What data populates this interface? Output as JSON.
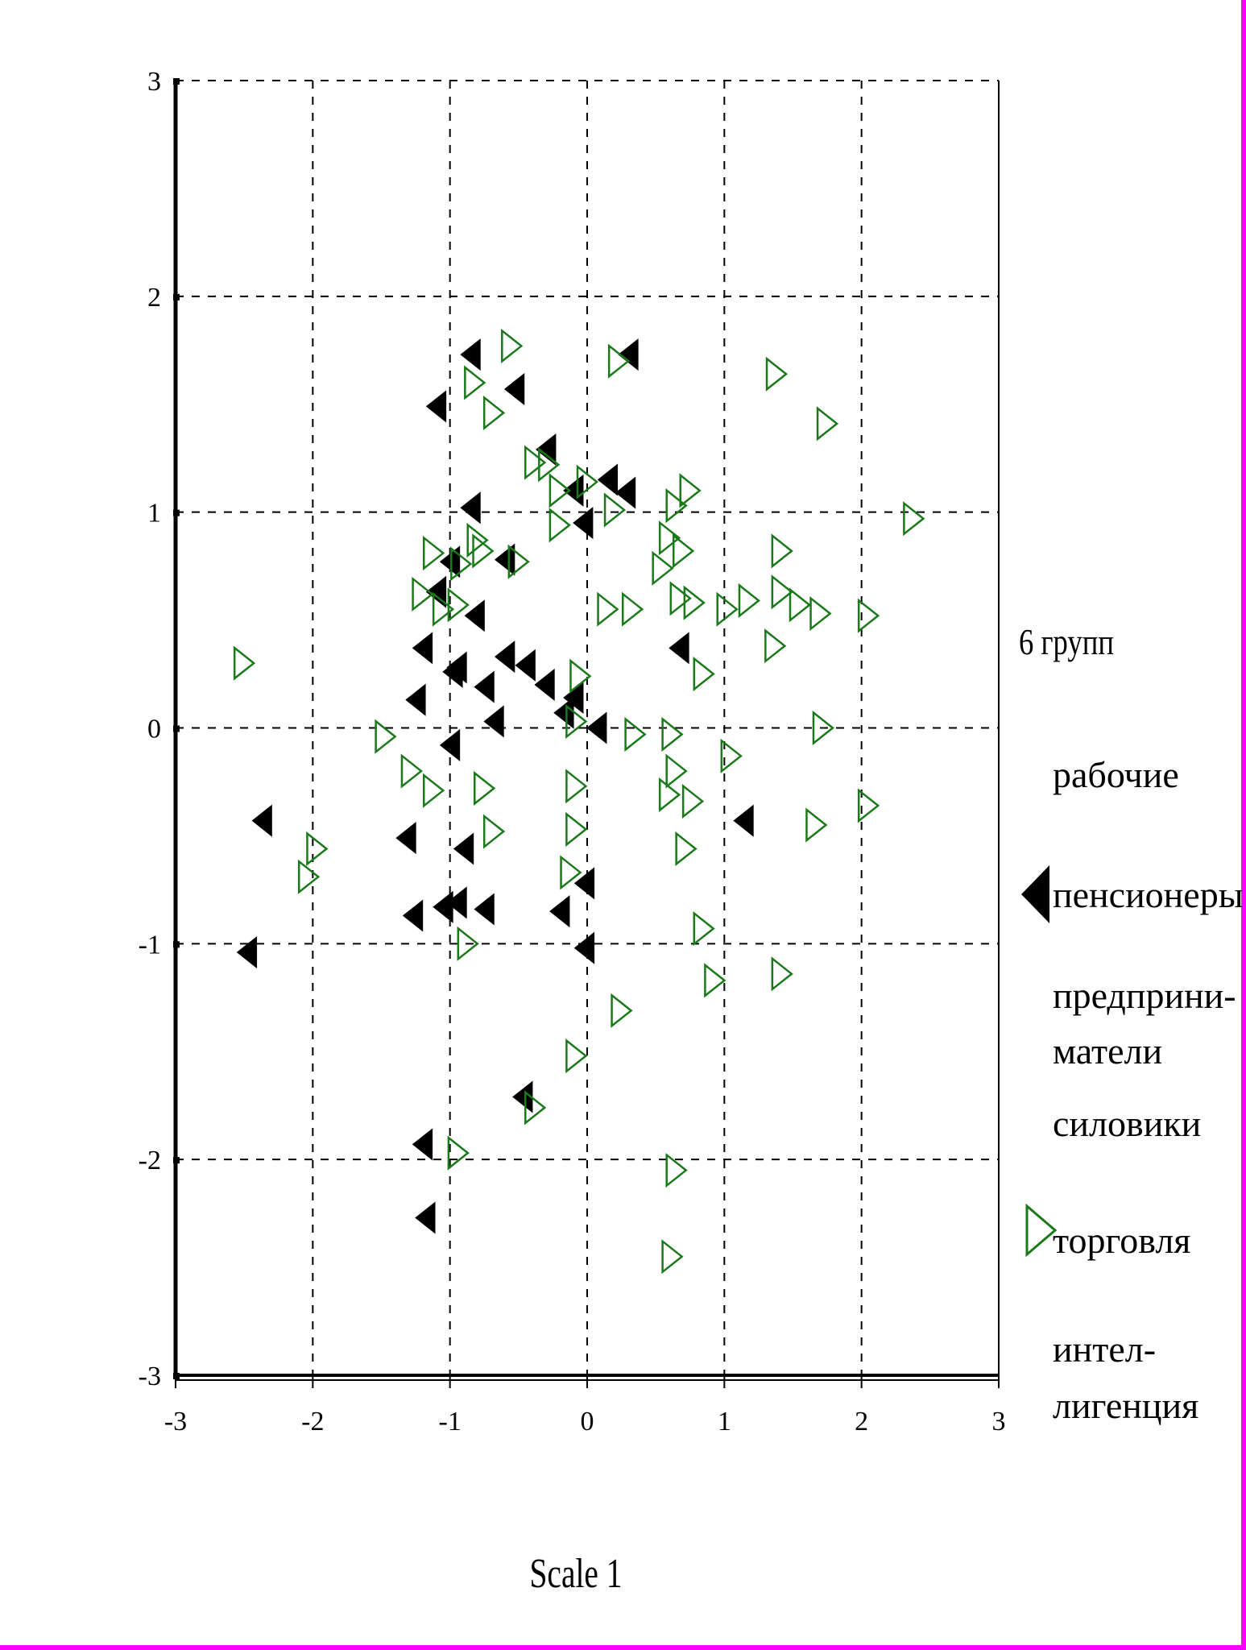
{
  "chart_data": {
    "type": "scatter",
    "xlabel": "Scale 1",
    "ylabel": "",
    "xlim": [
      -3,
      3
    ],
    "ylim": [
      -3,
      3
    ],
    "x_ticks": [
      "-3",
      "-2",
      "-1",
      "0",
      "1",
      "2",
      "3"
    ],
    "y_ticks": [
      "3",
      "2",
      "1",
      "0",
      "-1",
      "-2",
      "-3"
    ],
    "grid": true,
    "legend": {
      "position": "right",
      "title": "6 групп",
      "entries": [
        {
          "label": "рабочие",
          "marker": "none"
        },
        {
          "label": "пенсионеры",
          "marker": "filled-left-triangle"
        },
        {
          "label": "предприни-\nматели",
          "marker": "none"
        },
        {
          "label": "силовики",
          "marker": "none"
        },
        {
          "label": "торговля",
          "marker": "open-right-triangle"
        },
        {
          "label": "интел-\nлигенция",
          "marker": "none"
        }
      ]
    },
    "series": [
      {
        "name": "пенсионеры",
        "color": "#000000",
        "points": [
          [
            -0.85,
            1.73
          ],
          [
            0.3,
            1.73
          ],
          [
            -1.1,
            1.49
          ],
          [
            -0.53,
            1.57
          ],
          [
            -0.3,
            1.29
          ],
          [
            -0.1,
            1.1
          ],
          [
            0.15,
            1.15
          ],
          [
            0.28,
            1.09
          ],
          [
            -0.85,
            1.02
          ],
          [
            -0.03,
            0.95
          ],
          [
            -1.0,
            0.77
          ],
          [
            -0.6,
            0.78
          ],
          [
            -1.1,
            0.63
          ],
          [
            -0.82,
            0.52
          ],
          [
            -1.2,
            0.37
          ],
          [
            -0.6,
            0.33
          ],
          [
            -0.95,
            0.28
          ],
          [
            -0.45,
            0.29
          ],
          [
            0.67,
            0.37
          ],
          [
            -0.98,
            0.26
          ],
          [
            -0.75,
            0.19
          ],
          [
            -0.31,
            0.2
          ],
          [
            -0.1,
            0.14
          ],
          [
            -1.25,
            0.13
          ],
          [
            -0.17,
            0.07
          ],
          [
            -0.68,
            0.03
          ],
          [
            0.07,
            0.0
          ],
          [
            -1.0,
            -0.08
          ],
          [
            -2.37,
            -0.43
          ],
          [
            1.14,
            -0.43
          ],
          [
            -1.32,
            -0.51
          ],
          [
            -0.9,
            -0.56
          ],
          [
            -0.02,
            -0.72
          ],
          [
            -0.95,
            -0.81
          ],
          [
            -1.05,
            -0.83
          ],
          [
            -0.75,
            -0.84
          ],
          [
            -1.27,
            -0.87
          ],
          [
            -0.2,
            -0.85
          ],
          [
            -2.48,
            -1.04
          ],
          [
            -0.02,
            -1.02
          ],
          [
            -0.47,
            -1.71
          ],
          [
            -1.2,
            -1.93
          ],
          [
            -1.18,
            -2.27
          ]
        ]
      },
      {
        "name": "торговля",
        "color": "#1a7a1a",
        "points": [
          [
            -0.55,
            1.77
          ],
          [
            0.23,
            1.7
          ],
          [
            1.38,
            1.64
          ],
          [
            -0.82,
            1.6
          ],
          [
            -0.68,
            1.46
          ],
          [
            1.75,
            1.41
          ],
          [
            -0.38,
            1.23
          ],
          [
            -0.28,
            1.22
          ],
          [
            -0.2,
            1.1
          ],
          [
            0.0,
            1.14
          ],
          [
            0.75,
            1.1
          ],
          [
            0.2,
            1.01
          ],
          [
            0.65,
            1.03
          ],
          [
            2.38,
            0.97
          ],
          [
            -0.2,
            0.94
          ],
          [
            -0.8,
            0.87
          ],
          [
            0.6,
            0.88
          ],
          [
            1.42,
            0.82
          ],
          [
            -1.12,
            0.81
          ],
          [
            -0.76,
            0.82
          ],
          [
            0.7,
            0.82
          ],
          [
            -0.92,
            0.76
          ],
          [
            -0.5,
            0.77
          ],
          [
            0.55,
            0.74
          ],
          [
            1.42,
            0.63
          ],
          [
            -1.2,
            0.62
          ],
          [
            0.68,
            0.6
          ],
          [
            0.78,
            0.58
          ],
          [
            1.18,
            0.59
          ],
          [
            1.55,
            0.57
          ],
          [
            -1.05,
            0.55
          ],
          [
            -0.94,
            0.57
          ],
          [
            0.15,
            0.55
          ],
          [
            0.33,
            0.55
          ],
          [
            1.02,
            0.55
          ],
          [
            1.7,
            0.53
          ],
          [
            2.05,
            0.52
          ],
          [
            1.37,
            0.38
          ],
          [
            0.85,
            0.25
          ],
          [
            -0.05,
            0.24
          ],
          [
            -0.08,
            0.03
          ],
          [
            1.72,
            0.0
          ],
          [
            -1.47,
            -0.04
          ],
          [
            0.35,
            -0.03
          ],
          [
            0.62,
            -0.03
          ],
          [
            1.05,
            -0.13
          ],
          [
            -1.28,
            -0.2
          ],
          [
            0.65,
            -0.2
          ],
          [
            -1.12,
            -0.29
          ],
          [
            -0.75,
            -0.28
          ],
          [
            -0.08,
            -0.27
          ],
          [
            0.6,
            -0.31
          ],
          [
            0.77,
            -0.34
          ],
          [
            2.05,
            -0.36
          ],
          [
            -0.68,
            -0.48
          ],
          [
            -0.08,
            -0.47
          ],
          [
            1.67,
            -0.45
          ],
          [
            -1.97,
            -0.56
          ],
          [
            0.72,
            -0.56
          ],
          [
            -2.03,
            -0.69
          ],
          [
            -0.12,
            -0.67
          ],
          [
            0.85,
            -0.93
          ],
          [
            -0.87,
            -1.0
          ],
          [
            0.93,
            -1.17
          ],
          [
            1.42,
            -1.14
          ],
          [
            0.25,
            -1.31
          ],
          [
            -0.08,
            -1.52
          ],
          [
            -0.38,
            -1.76
          ],
          [
            -0.94,
            -1.97
          ],
          [
            0.65,
            -2.05
          ],
          [
            0.62,
            -2.45
          ],
          [
            -2.5,
            0.3
          ]
        ]
      }
    ]
  }
}
